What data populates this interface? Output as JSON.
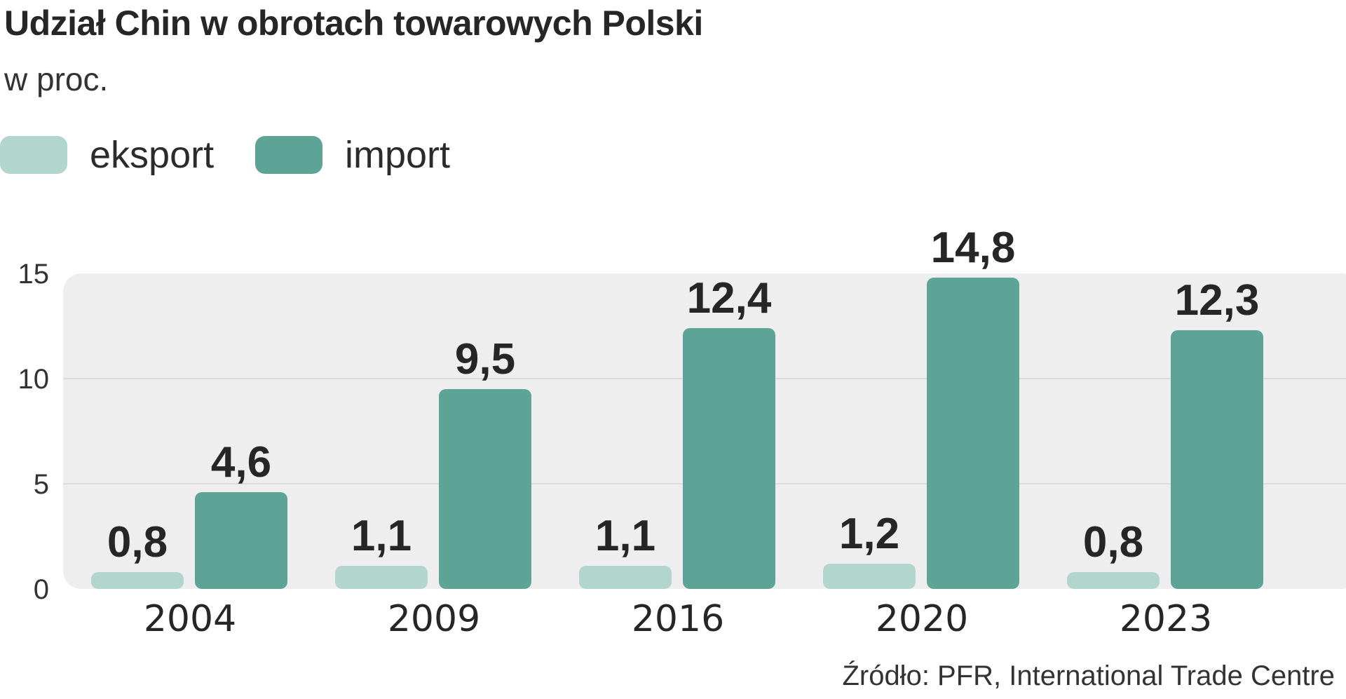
{
  "title": "Udział Chin w obrotach towarowych Polski",
  "subtitle": "w proc.",
  "source": "Źródło: PFR, International Trade Centre",
  "colors": {
    "eksport": "#b2d5cd",
    "import": "#5da497",
    "plot_background": "#eeeeee",
    "gridline": "#dcdcdc"
  },
  "chart_data": {
    "type": "bar",
    "categories": [
      "2004",
      "2009",
      "2016",
      "2020",
      "2023"
    ],
    "series": [
      {
        "name": "eksport",
        "values": [
          0.8,
          1.1,
          1.1,
          1.2,
          0.8
        ]
      },
      {
        "name": "import",
        "values": [
          4.6,
          9.5,
          12.4,
          14.8,
          12.3
        ]
      }
    ],
    "value_labels": {
      "eksport": [
        "0,8",
        "1,1",
        "1,1",
        "1,2",
        "0,8"
      ],
      "import": [
        "4,6",
        "9,5",
        "12,4",
        "14,8",
        "12,3"
      ]
    },
    "yticks": [
      "0",
      "5",
      "10",
      "15"
    ],
    "ylim": [
      0,
      15
    ],
    "grid": true,
    "legend_position": "top-left"
  }
}
